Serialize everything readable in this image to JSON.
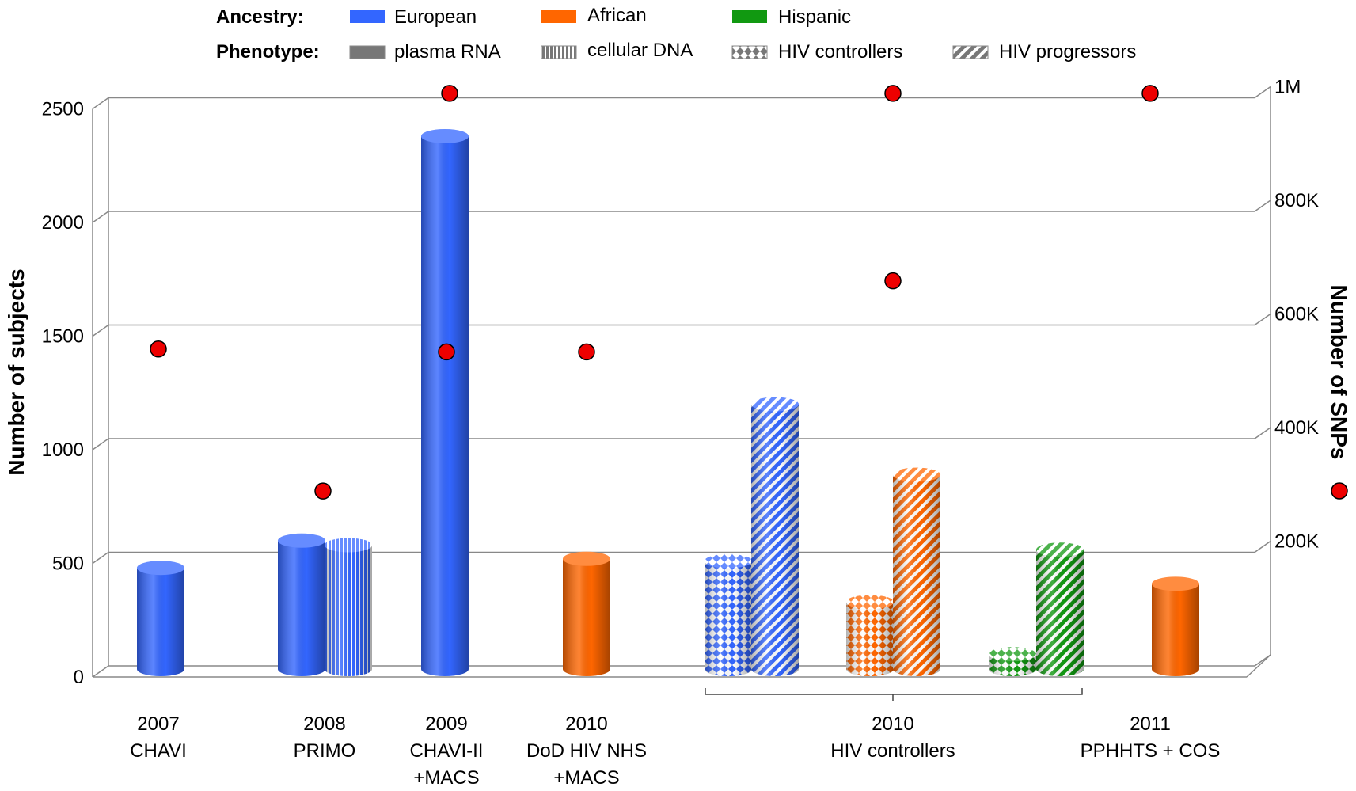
{
  "chart_data": {
    "type": "bar",
    "title": "",
    "ylabel": "Number of subjects",
    "y2label": "Number of SNPs",
    "ylim": [
      0,
      2500
    ],
    "yticks": [
      0,
      500,
      1000,
      1500,
      2000,
      2500
    ],
    "y2ticks": [
      "",
      "200K",
      "400K",
      "600K",
      "800K",
      "1M"
    ],
    "legend": {
      "ancestry_label": "Ancestry:",
      "phenotype_label": "Phenotype:",
      "ancestry": [
        {
          "name": "European",
          "color": "#3366ff"
        },
        {
          "name": "African",
          "color": "#ff6600"
        },
        {
          "name": "Hispanic",
          "color": "#119911"
        }
      ],
      "phenotype": [
        {
          "name": "plasma RNA",
          "pattern": "solid"
        },
        {
          "name": "cellular DNA",
          "pattern": "vertical"
        },
        {
          "name": "HIV controllers",
          "pattern": "diamond"
        },
        {
          "name": "HIV progressors",
          "pattern": "diagonal"
        }
      ]
    },
    "categories": [
      {
        "lines": [
          "2007",
          "CHAVI"
        ]
      },
      {
        "lines": [
          "2008",
          "PRIMO"
        ]
      },
      {
        "lines": [
          "2009",
          "CHAVI-II",
          "+MACS"
        ]
      },
      {
        "lines": [
          "2010",
          "DoD HIV NHS",
          "+MACS"
        ]
      },
      {
        "lines": [
          "2010",
          "HIV controllers"
        ]
      },
      {
        "lines": [
          "2011",
          "PPHHTS + COS"
        ]
      }
    ],
    "bars": [
      {
        "category": 0,
        "ancestry": "European",
        "phenotype": "plasma RNA",
        "value": 480
      },
      {
        "category": 1,
        "ancestry": "European",
        "phenotype": "plasma RNA",
        "value": 600
      },
      {
        "category": 1,
        "ancestry": "European",
        "phenotype": "cellular DNA",
        "value": 580
      },
      {
        "category": 2,
        "ancestry": "European",
        "phenotype": "plasma RNA",
        "value": 2380
      },
      {
        "category": 3,
        "ancestry": "African",
        "phenotype": "plasma RNA",
        "value": 520
      },
      {
        "category": 4,
        "ancestry": "European",
        "phenotype": "HIV controllers",
        "value": 510
      },
      {
        "category": 4,
        "ancestry": "European",
        "phenotype": "HIV progressors",
        "value": 1200
      },
      {
        "category": 4,
        "ancestry": "African",
        "phenotype": "HIV controllers",
        "value": 330
      },
      {
        "category": 4,
        "ancestry": "African",
        "phenotype": "HIV progressors",
        "value": 890
      },
      {
        "category": 4,
        "ancestry": "Hispanic",
        "phenotype": "HIV controllers",
        "value": 100
      },
      {
        "category": 4,
        "ancestry": "Hispanic",
        "phenotype": "HIV progressors",
        "value": 560
      },
      {
        "category": 5,
        "ancestry": "African",
        "phenotype": "plasma RNA",
        "value": 410
      }
    ],
    "snp_points": [
      {
        "category": 0,
        "snps": 550000
      },
      {
        "category": 1,
        "snps": 300000
      },
      {
        "category": 2,
        "snps": 1000000
      },
      {
        "category": 2,
        "snps": 545000
      },
      {
        "category": 3,
        "snps": 545000
      },
      {
        "category": 4,
        "snps": 1000000
      },
      {
        "category": 4,
        "snps": 670000
      },
      {
        "category": 5,
        "snps": 1000000
      }
    ],
    "grid": true,
    "legend_position": "top"
  }
}
